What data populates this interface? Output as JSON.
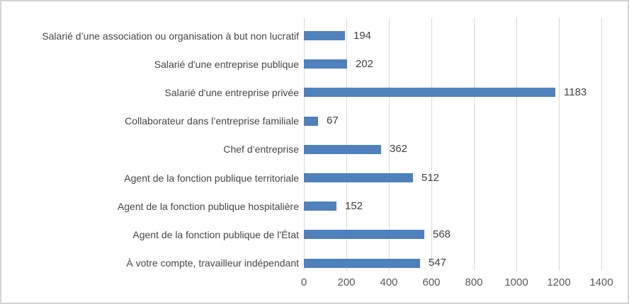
{
  "chart_data": {
    "type": "bar",
    "orientation": "horizontal",
    "title": "",
    "xlabel": "",
    "ylabel": "",
    "categories": [
      "Salarié d’une association ou organisation à but non lucratif",
      "Salarié d'une entreprise publique",
      "Salarié d'une entreprise privée",
      "Collaborateur dans l’entreprise familiale",
      "Chef d’entreprise",
      "Agent de la fonction publique territoriale",
      "Agent de la fonction publique hospitalière",
      "Agent de la fonction publique de l'État",
      "À votre compte, travailleur indépendant"
    ],
    "values": [
      194,
      202,
      1183,
      67,
      362,
      512,
      152,
      568,
      547
    ],
    "data_labels_shown": true,
    "x_ticks": [
      0,
      200,
      400,
      600,
      800,
      1000,
      1200,
      1400
    ],
    "x_tick_labels": [
      "0",
      "200",
      "400",
      "600",
      "800",
      "1000",
      "1200",
      "1400"
    ],
    "xlim": [
      0,
      1400
    ],
    "grid": true,
    "legend": false,
    "colors": {
      "bar": "#4f81bd",
      "gridline": "#d9d9d9",
      "data_label_text": "#404040",
      "category_text": "#464646",
      "axis_tick_text": "#595959",
      "frame_border": "#d4d4d4",
      "background": "#ffffff"
    }
  }
}
